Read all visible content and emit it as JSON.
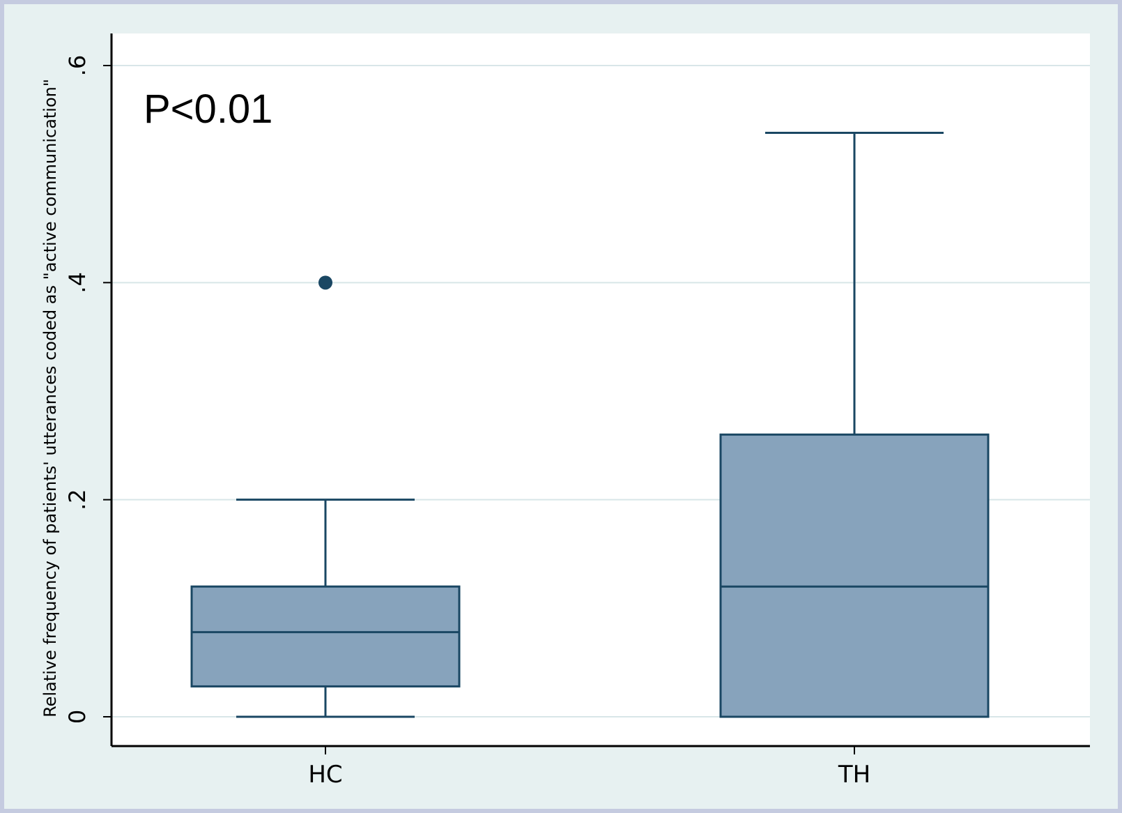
{
  "chart_data": {
    "type": "box",
    "ylabel": "Relative frequency of patients' utterances coded as \"active communication\"",
    "xlabel": "",
    "ylim": [
      0,
      0.6
    ],
    "yticks": [
      {
        "value": 0,
        "label": "0"
      },
      {
        "value": 0.2,
        "label": ".2"
      },
      {
        "value": 0.4,
        "label": ".4"
      },
      {
        "value": 0.6,
        "label": ".6"
      }
    ],
    "grid": true,
    "categories": [
      "HC",
      "TH"
    ],
    "boxes": [
      {
        "category": "HC",
        "whisker_low": 0,
        "q1": 0.028,
        "median": 0.078,
        "q3": 0.12,
        "whisker_high": 0.2,
        "outliers": [
          0.4
        ]
      },
      {
        "category": "TH",
        "whisker_low": 0,
        "q1": 0,
        "median": 0.12,
        "q3": 0.26,
        "whisker_high": 0.538,
        "outliers": []
      }
    ],
    "annotations": [
      "P<0.01"
    ],
    "colors": {
      "box_fill": "#87a3bc",
      "box_stroke": "#1a4763",
      "grid": "#d8e6e8",
      "axis": "#000000",
      "background": "#e7f1f1",
      "outer_frame": "#c5cbe0"
    }
  }
}
